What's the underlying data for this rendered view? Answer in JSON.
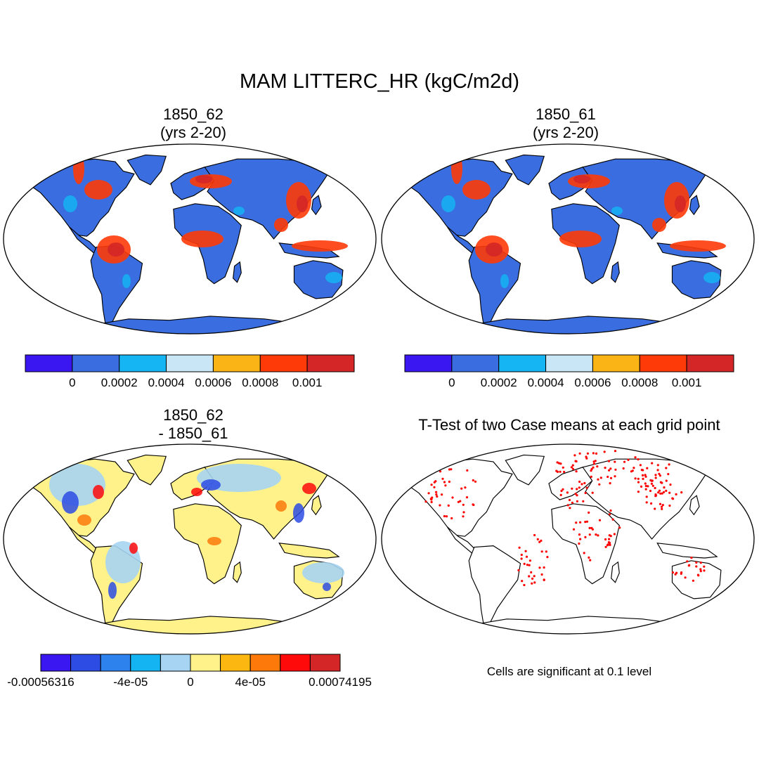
{
  "figure": {
    "title": "MAM LITTERC_HR (kgC/m2d)",
    "panels": [
      {
        "id": "case1",
        "title_line1": "1850_62",
        "title_line2": "(yrs 2-20)"
      },
      {
        "id": "case2",
        "title_line1": "1850_61",
        "title_line2": "(yrs 2-20)"
      },
      {
        "id": "diff",
        "title_line1": "1850_62",
        "title_line2": "- 1850_61"
      },
      {
        "id": "ttest",
        "title_line1": "T-Test of two Case means at each grid point",
        "title_line2": ""
      }
    ],
    "ttest_note": "Cells are significant at 0.1 level"
  },
  "colorbars": {
    "abs": {
      "colors": [
        "#3a16f0",
        "#3a6ee0",
        "#15b4f2",
        "#c8e6f5",
        "#fbb416",
        "#fe3a08",
        "#d42626"
      ],
      "labels": [
        "0",
        "0.0002",
        "0.0004",
        "0.0006",
        "0.0008",
        "0.001"
      ]
    },
    "diff": {
      "colors": [
        "#3a16f0",
        "#2d4ce3",
        "#2e82ee",
        "#14b4f2",
        "#a6d4f2",
        "#fff28a",
        "#fcb810",
        "#fd7a0a",
        "#fe0a0a",
        "#d42626"
      ],
      "labels": [
        "-0.00056316",
        "-4e-05",
        "0",
        "4e-05",
        "0.00074195"
      ]
    }
  }
}
